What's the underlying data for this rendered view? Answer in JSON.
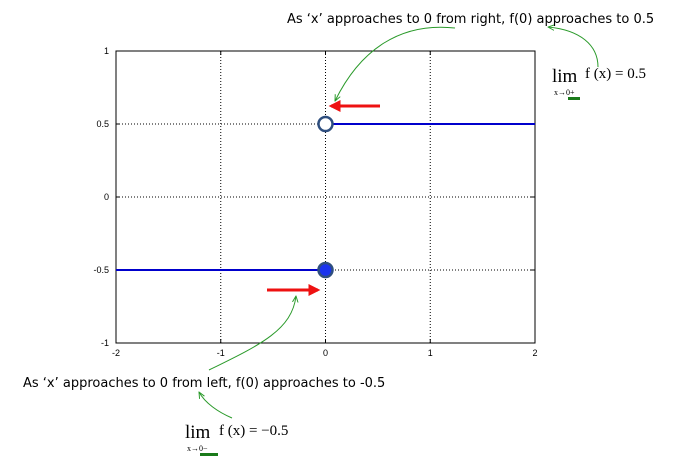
{
  "chart_data": {
    "type": "line",
    "xlim": [
      -2,
      2
    ],
    "ylim": [
      -1,
      1
    ],
    "x_ticks": [
      "-2",
      "-1",
      "0",
      "1",
      "2"
    ],
    "y_ticks": [
      "1",
      "0.5",
      "0",
      "-0.5",
      "-1"
    ],
    "x_tick_values": [
      -2,
      -1,
      0,
      1,
      2
    ],
    "y_tick_values": [
      1,
      0.5,
      0,
      -0.5,
      -1
    ],
    "grid": true,
    "series": [
      {
        "x": [
          -2,
          0
        ],
        "y": [
          -0.5,
          -0.5
        ]
      },
      {
        "x": [
          0,
          2
        ],
        "y": [
          0.5,
          0.5
        ]
      }
    ],
    "markers": [
      {
        "x": 0,
        "y": 0.5,
        "filled": false
      },
      {
        "x": 0,
        "y": -0.5,
        "filled": true
      }
    ],
    "annotations": {
      "right_text": "As ‘x’ approaches to 0 from right, f(0) approaches to 0.5",
      "left_text": "As ‘x’ approaches to 0 from left, f(0) approaches to -0.5",
      "right_limit": {
        "lim": "lim",
        "sub": "x→0+",
        "expr": "f (x) = 0.5"
      },
      "left_limit": {
        "lim": "lim",
        "sub": "x→0−",
        "expr": "f (x) = −0.5"
      }
    },
    "colors": {
      "line": "#0000cc",
      "marker_edge": "#2f4f7f",
      "marker_fill": "#1a33ee",
      "arrow": "#ee1111",
      "pointer": "#2a9a2a",
      "underline": "#1a7a1a"
    }
  }
}
